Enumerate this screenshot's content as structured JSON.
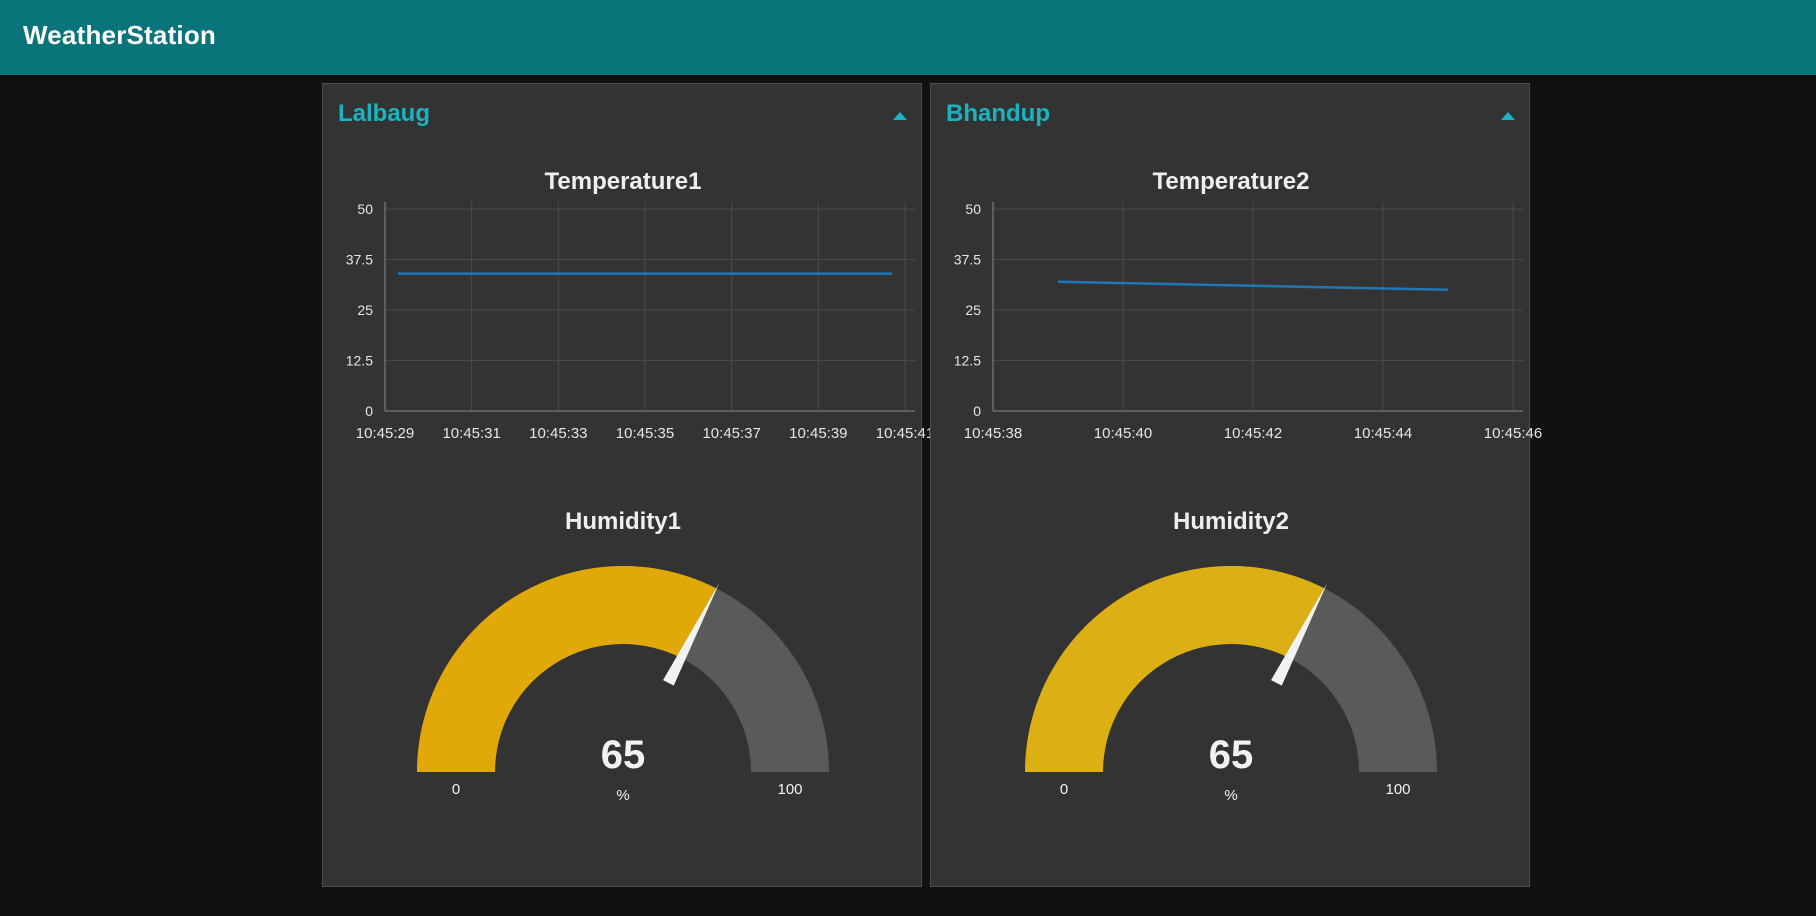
{
  "app": {
    "title": "WeatherStation"
  },
  "groups": [
    {
      "title": "Lalbaug",
      "chart_title": "Temperature1",
      "gauge_title": "Humidity1",
      "gauge": {
        "value": 65,
        "unit": "%",
        "min": 0,
        "max": 100,
        "min_label": "0",
        "max_label": "100"
      },
      "chart_data": {
        "type": "line",
        "title": "Temperature1",
        "y_ticks": [
          "50",
          "37.5",
          "25",
          "12.5",
          "0"
        ],
        "ylim": [
          0,
          50
        ],
        "x_ticks": [
          "10:45:29",
          "10:45:31",
          "10:45:33",
          "10:45:35",
          "10:45:37",
          "10:45:39",
          "10:45:41"
        ],
        "xlim": [
          "10:45:29",
          "10:45:41"
        ],
        "grid": true,
        "series": [
          {
            "color": "#1f77b4",
            "points": [
              {
                "x": "10:45:29.3",
                "y": 34
              },
              {
                "x": "10:45:40.7",
                "y": 34
              }
            ]
          }
        ]
      }
    },
    {
      "title": "Bhandup",
      "chart_title": "Temperature2",
      "gauge_title": "Humidity2",
      "gauge": {
        "value": 65,
        "unit": "%",
        "min": 0,
        "max": 100,
        "min_label": "0",
        "max_label": "100"
      },
      "chart_data": {
        "type": "line",
        "title": "Temperature2",
        "y_ticks": [
          "50",
          "37.5",
          "25",
          "12.5",
          "0"
        ],
        "ylim": [
          0,
          50
        ],
        "x_ticks": [
          "10:45:38",
          "10:45:40",
          "10:45:42",
          "10:45:44",
          "10:45:46"
        ],
        "xlim": [
          "10:45:38",
          "10:45:46"
        ],
        "grid": true,
        "series": [
          {
            "color": "#1f77b4",
            "points": [
              {
                "x": "10:45:39",
                "y": 32
              },
              {
                "x": "10:45:45",
                "y": 30
              }
            ]
          }
        ]
      }
    }
  ],
  "colors": {
    "header": "#097479",
    "accent": "#18b4c2",
    "gauge_fill_1": "#e0a809",
    "gauge_fill_2": "#dcb015",
    "gauge_track": "#5a5a5a",
    "line": "#1f77b4"
  }
}
